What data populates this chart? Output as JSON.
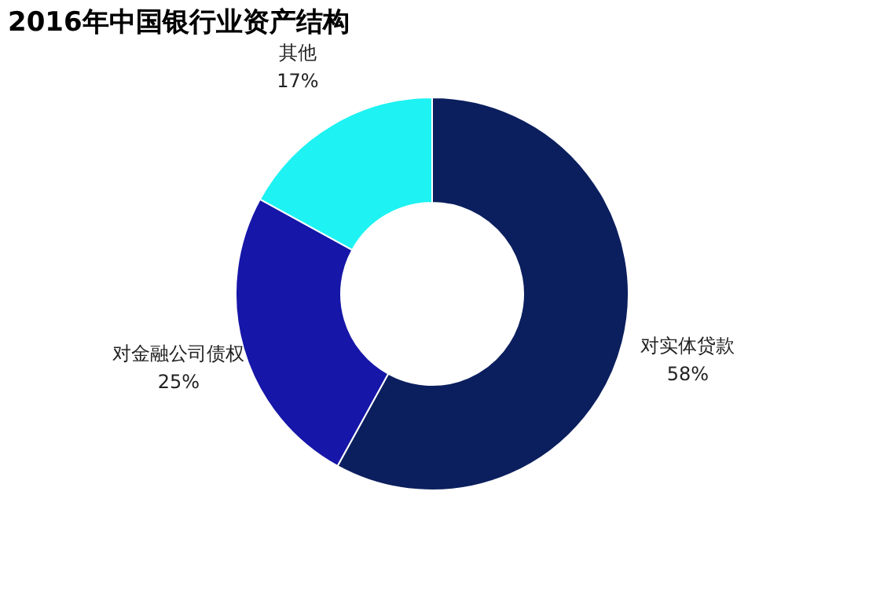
{
  "chart_data": {
    "type": "donut",
    "title": "2016年中国银行业资产结构",
    "categories": [
      "对实体贷款",
      "对金融公司债权",
      "其他"
    ],
    "values": [
      58,
      25,
      17
    ],
    "colors": [
      "#0b1f5e",
      "#1616a8",
      "#1ef2f2"
    ],
    "value_labels": [
      "58%",
      "25%",
      "17%"
    ],
    "legend": false
  }
}
